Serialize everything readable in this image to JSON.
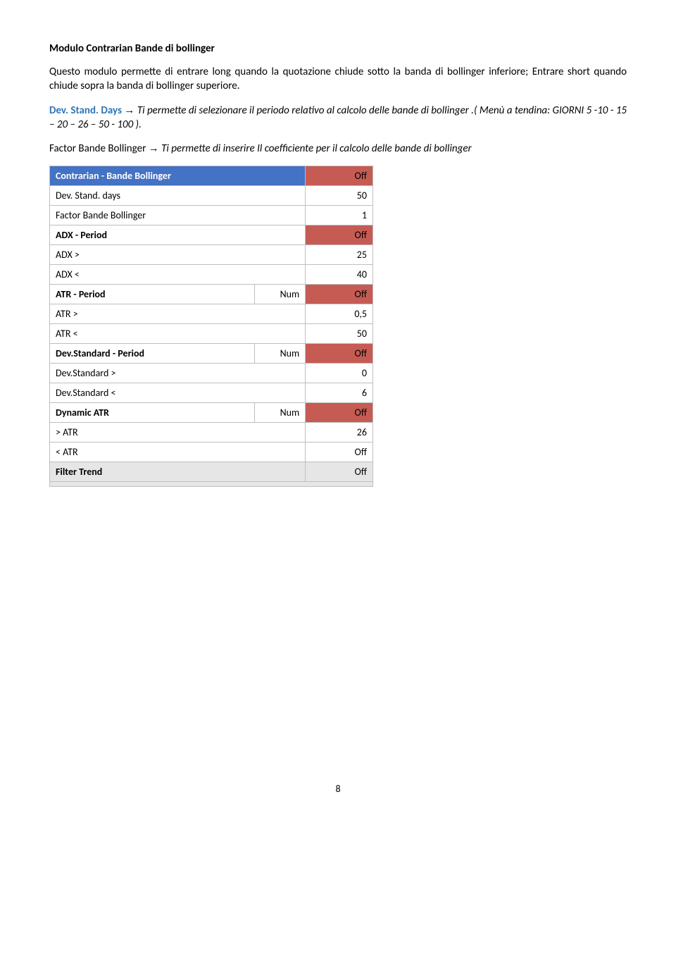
{
  "title": "Modulo Contrarian Bande di bollinger",
  "para1": "Questo modulo permette di entrare long quando la quotazione chiude sotto la banda di bollinger inferiore; Entrare short quando chiude sopra la banda di bollinger superiore.",
  "term1": "Dev. Stand. Days",
  "arrow": "→",
  "desc1a": " Ti permette di selezionare il periodo relativo al calcolo delle bande di bollinger .( Menù a tendina: GIORNI 5 -10 - 15 – 20 – 26 – 50 - 100  ).",
  "term2_pre": "Factor Bande Bollinger ",
  "desc2": " Ti permette di inserire Il coefficiente per il calcolo delle bande di bollinger",
  "table": {
    "header": {
      "label": "Contrarian - Bande Bollinger",
      "mid": "",
      "val": "Off"
    },
    "rows": [
      {
        "label": "Dev. Stand. days",
        "mid": "",
        "val": "50",
        "bold": false,
        "red": false,
        "num": false
      },
      {
        "label": "Factor Bande Bollinger",
        "mid": "",
        "val": "1",
        "bold": false,
        "red": false,
        "num": false
      },
      {
        "label": "ADX - Period",
        "mid": "",
        "val": "Off",
        "bold": true,
        "red": true,
        "num": false
      },
      {
        "label": "ADX >",
        "mid": "",
        "val": "25",
        "bold": false,
        "red": false,
        "num": false
      },
      {
        "label": "ADX <",
        "mid": "",
        "val": "40",
        "bold": false,
        "red": false,
        "num": false
      },
      {
        "label": "ATR - Period",
        "mid": "Num",
        "val": "Off",
        "bold": true,
        "red": true,
        "num": true
      },
      {
        "label": "ATR  >",
        "mid": "",
        "val": "0,5",
        "bold": false,
        "red": false,
        "num": false
      },
      {
        "label": "ATR  <",
        "mid": "",
        "val": "50",
        "bold": false,
        "red": false,
        "num": false
      },
      {
        "label": "Dev.Standard - Period",
        "mid": "Num",
        "val": "Off",
        "bold": true,
        "red": true,
        "num": true
      },
      {
        "label": "Dev.Standard  >",
        "mid": "",
        "val": "0",
        "bold": false,
        "red": false,
        "num": false
      },
      {
        "label": "Dev.Standard  <",
        "mid": "",
        "val": "6",
        "bold": false,
        "red": false,
        "num": false
      },
      {
        "label": "Dynamic ATR",
        "mid": "Num",
        "val": "Off",
        "bold": true,
        "red": true,
        "num": true
      },
      {
        "label": "> ATR",
        "mid": "",
        "val": "26",
        "bold": false,
        "red": false,
        "num": false
      },
      {
        "label": "< ATR",
        "mid": "",
        "val": "Off",
        "bold": false,
        "red": false,
        "num": false
      },
      {
        "label": "Filter Trend",
        "mid": "",
        "val": "Off",
        "bold": true,
        "red": true,
        "num": false,
        "grey": true
      }
    ]
  },
  "pagenum": "8"
}
